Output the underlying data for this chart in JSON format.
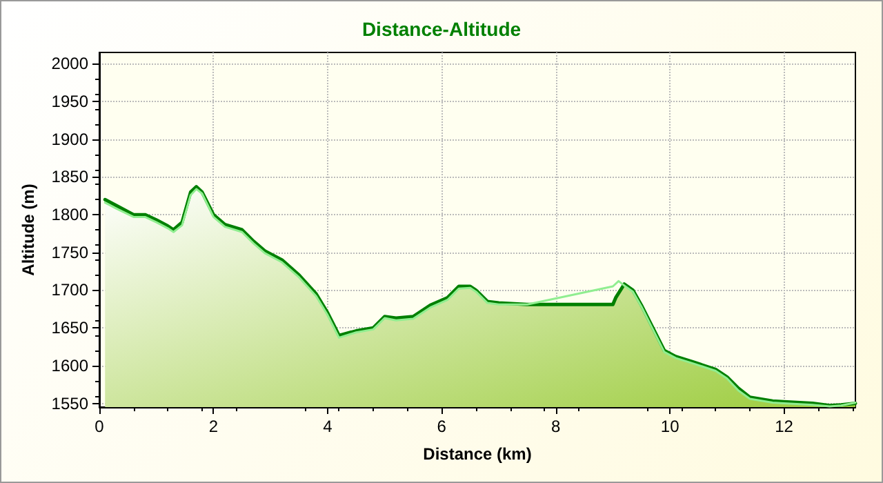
{
  "chart_data": {
    "type": "area",
    "title": "Distance-Altitude",
    "xlabel": "Distance (km)",
    "ylabel": "Altitude (m)",
    "xlim": [
      0,
      13.25
    ],
    "xticks": [
      0,
      2,
      4,
      6,
      8,
      10,
      12
    ],
    "ylim": [
      1545,
      2015
    ],
    "yticks": [
      1550,
      1600,
      1650,
      1700,
      1750,
      1800,
      1850,
      1900,
      1950,
      2000
    ],
    "grid": true,
    "line_style": "solid",
    "series": [
      {
        "type": "line",
        "color": "#90ee90",
        "x": [
          0.1,
          0.3,
          0.6,
          0.8,
          1.0,
          1.2,
          1.3,
          1.45,
          1.6,
          1.7,
          1.8,
          2.0,
          2.2,
          2.5,
          2.7,
          2.9,
          3.2,
          3.5,
          3.8,
          4.0,
          4.1,
          4.2,
          4.5,
          4.8,
          5.0,
          5.2,
          5.5,
          5.8,
          6.1,
          6.3,
          6.5,
          6.6,
          6.8,
          7.0,
          7.5,
          9.0,
          9.1,
          9.2,
          9.35,
          9.5,
          9.7,
          9.9,
          10.1,
          10.4,
          10.8,
          11.0,
          11.2,
          11.4,
          11.8,
          12.0,
          12.5,
          12.8,
          13.0,
          13.25
        ],
        "values": [
          1816,
          1808,
          1797,
          1797,
          1790,
          1782,
          1777,
          1786,
          1826,
          1834,
          1828,
          1797,
          1784,
          1777,
          1762,
          1749,
          1737,
          1717,
          1692,
          1667,
          1652,
          1637,
          1644,
          1648,
          1663,
          1660,
          1662,
          1677,
          1687,
          1702,
          1703,
          1698,
          1683,
          1681,
          1681,
          1705,
          1712,
          1706,
          1698,
          1678,
          1648,
          1618,
          1610,
          1603,
          1593,
          1583,
          1567,
          1556,
          1551,
          1550,
          1548,
          1546,
          1547,
          1551
        ]
      },
      {
        "color": "#008000",
        "x": [
          0.1,
          0.3,
          0.6,
          0.8,
          1.0,
          1.2,
          1.3,
          1.45,
          1.6,
          1.7,
          1.8,
          2.0,
          2.2,
          2.5,
          2.7,
          2.9,
          3.2,
          3.5,
          3.8,
          4.0,
          4.1,
          4.2,
          4.5,
          4.8,
          5.0,
          5.2,
          5.5,
          5.8,
          6.1,
          6.3,
          6.5,
          6.6,
          6.8,
          7.0,
          7.5,
          8.0,
          9.0,
          9.05,
          9.2,
          9.35,
          9.5,
          9.7,
          9.9,
          10.1,
          10.4,
          10.8,
          11.0,
          11.2,
          11.4,
          11.8,
          12.0,
          12.5,
          12.8,
          13.0,
          13.25
        ],
        "values": [
          1820,
          1812,
          1800,
          1800,
          1793,
          1785,
          1780,
          1790,
          1830,
          1837,
          1830,
          1800,
          1787,
          1780,
          1765,
          1752,
          1740,
          1720,
          1695,
          1670,
          1655,
          1640,
          1646,
          1650,
          1665,
          1663,
          1665,
          1680,
          1690,
          1705,
          1705,
          1700,
          1685,
          1683,
          1681,
          1681,
          1681,
          1690,
          1708,
          1700,
          1680,
          1650,
          1620,
          1612,
          1605,
          1595,
          1585,
          1570,
          1558,
          1553,
          1552,
          1550,
          1547,
          1548,
          1550
        ]
      }
    ]
  }
}
